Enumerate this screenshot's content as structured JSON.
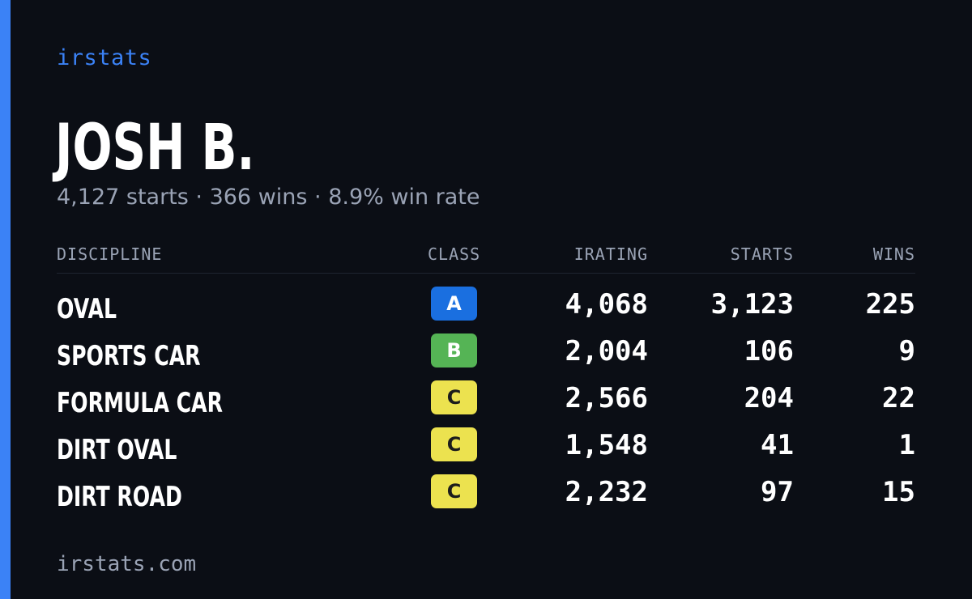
{
  "brand": "irstats",
  "driver": {
    "name": "JOSH B.",
    "summary": "4,127 starts · 366 wins · 8.9% win rate"
  },
  "table": {
    "headers": {
      "discipline": "DISCIPLINE",
      "class": "CLASS",
      "irating": "IRATING",
      "starts": "STARTS",
      "wins": "WINS"
    },
    "rows": [
      {
        "discipline": "OVAL",
        "class": "A",
        "class_color": "#1a6fe0",
        "class_text_color": "#ffffff",
        "irating": "4,068",
        "starts": "3,123",
        "wins": "225"
      },
      {
        "discipline": "SPORTS CAR",
        "class": "B",
        "class_color": "#55b455",
        "class_text_color": "#ffffff",
        "irating": "2,004",
        "starts": "106",
        "wins": "9"
      },
      {
        "discipline": "FORMULA CAR",
        "class": "C",
        "class_color": "#ece24f",
        "class_text_color": "#1c1c1c",
        "irating": "2,566",
        "starts": "204",
        "wins": "22"
      },
      {
        "discipline": "DIRT OVAL",
        "class": "C",
        "class_color": "#ece24f",
        "class_text_color": "#1c1c1c",
        "irating": "1,548",
        "starts": "41",
        "wins": "1"
      },
      {
        "discipline": "DIRT ROAD",
        "class": "C",
        "class_color": "#ece24f",
        "class_text_color": "#1c1c1c",
        "irating": "2,232",
        "starts": "97",
        "wins": "15"
      }
    ]
  },
  "footer": "irstats.com",
  "colors": {
    "background": "#0b0e15",
    "accent": "#3b82f6",
    "muted_text": "#9aa3b5"
  }
}
